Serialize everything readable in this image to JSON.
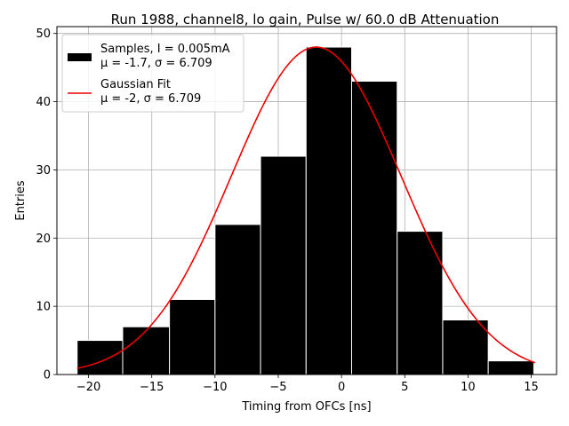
{
  "chart_data": {
    "type": "bar",
    "title": "Run 1988, channel8, lo gain, Pulse w/ 60.0 dB Attenuation",
    "xlabel": "Timing from OFCs [ns]",
    "ylabel": "Entries",
    "xlim": [
      -22.5,
      17.0
    ],
    "ylim": [
      0,
      51
    ],
    "xticks": [
      -20,
      -15,
      -10,
      -5,
      0,
      5,
      10,
      15
    ],
    "xtick_labels": [
      "−20",
      "−15",
      "−10",
      "−5",
      "0",
      "5",
      "10",
      "15"
    ],
    "yticks": [
      0,
      10,
      20,
      30,
      40,
      50
    ],
    "ytick_labels": [
      "0",
      "10",
      "20",
      "30",
      "40",
      "50"
    ],
    "grid": true,
    "histogram": {
      "name": "Samples",
      "color": "#000000",
      "edge_color": "#ffffff",
      "bin_edges": [
        -20.9,
        -17.3,
        -13.6,
        -10.0,
        -6.4,
        -2.8,
        0.8,
        4.4,
        8.0,
        11.6,
        15.2
      ],
      "counts": [
        5,
        7,
        11,
        22,
        32,
        48,
        43,
        21,
        8,
        2
      ]
    },
    "fit": {
      "name": "Gaussian Fit",
      "color": "#ee0000",
      "amplitude": 48,
      "mu": -2,
      "sigma": 6.709,
      "x_range": [
        -20.9,
        15.3
      ]
    },
    "legend": {
      "position": "top-left",
      "entries": [
        {
          "kind": "histogram",
          "lines": [
            "Samples, I = 0.005mA",
            "μ = -1.7, σ = 6.709"
          ]
        },
        {
          "kind": "fit",
          "lines": [
            "Gaussian Fit",
            "μ = -2, σ = 6.709"
          ]
        }
      ]
    }
  }
}
